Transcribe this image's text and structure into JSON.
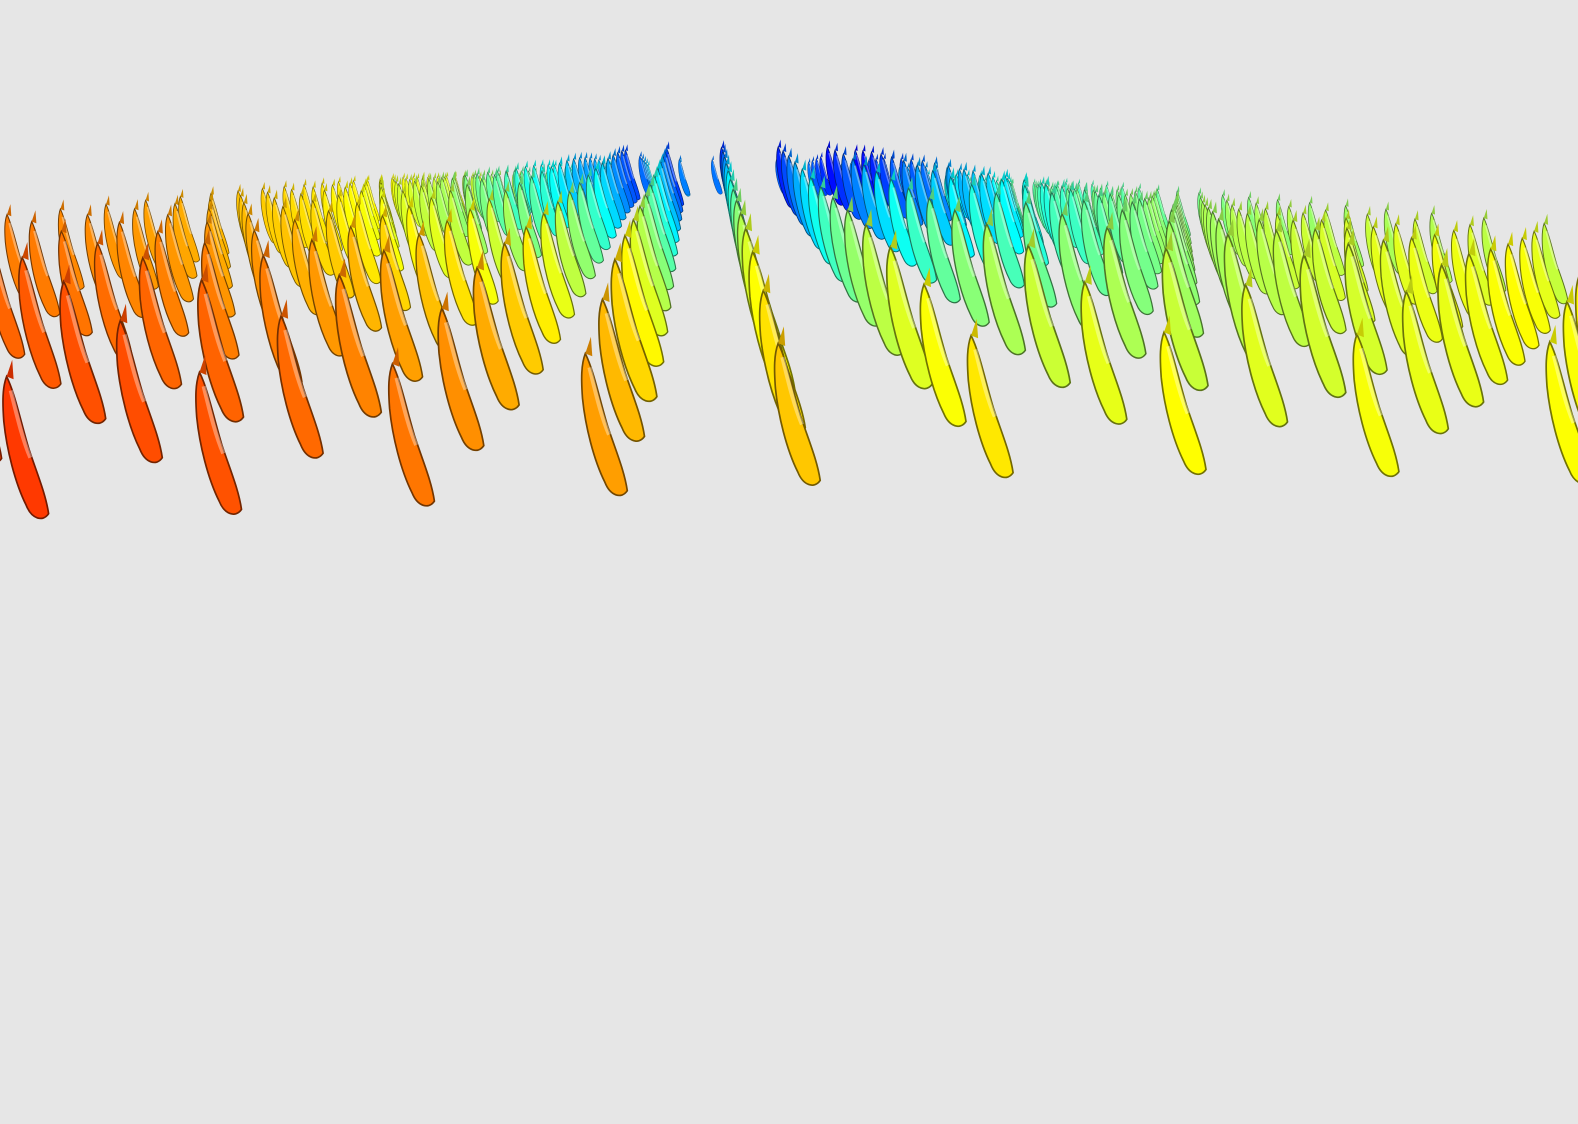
{
  "scene": {
    "background": "#e6e6e6",
    "colormap": [
      "#ff0000",
      "#ff8000",
      "#ffff00",
      "#80ff80",
      "#00ffff",
      "#0080ff",
      "#0000ff"
    ],
    "glyph": "bunny-icon",
    "rows": 26,
    "cols": 21
  }
}
